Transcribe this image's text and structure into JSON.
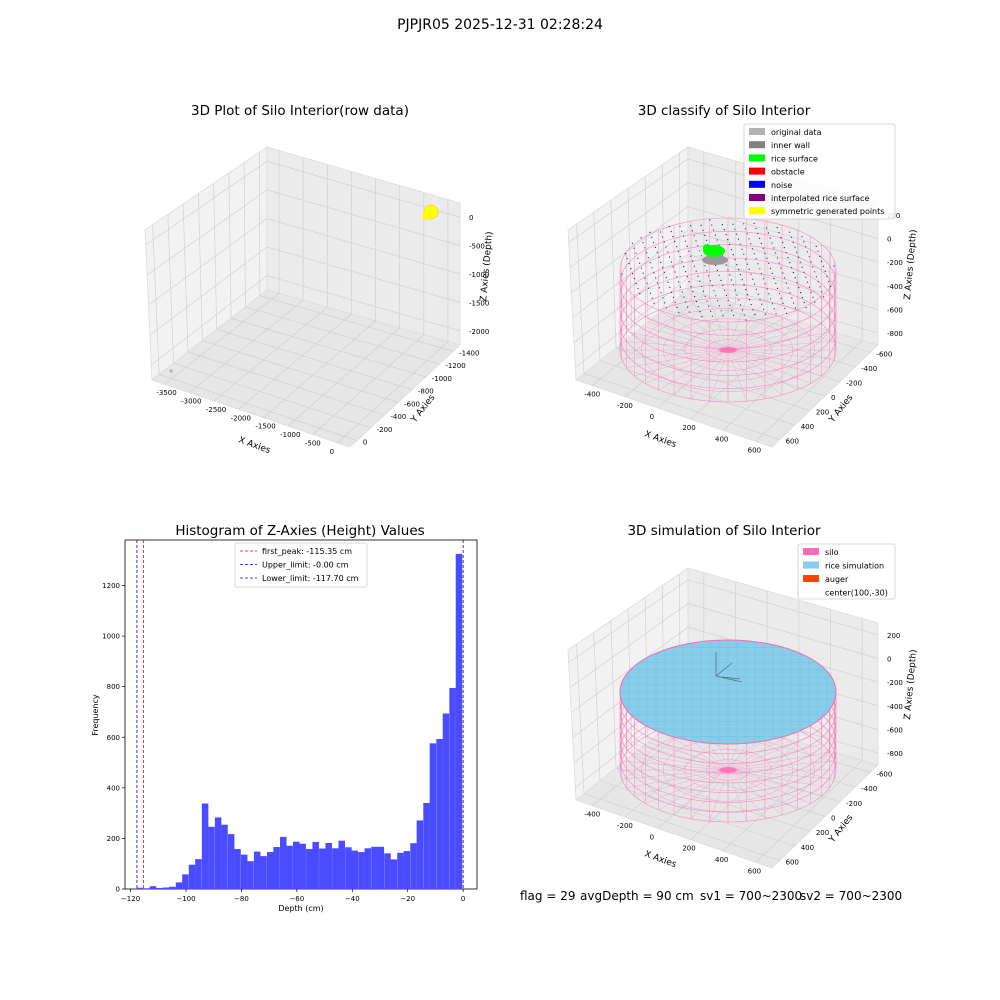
{
  "suptitle": "PJPJR05 2025-12-31 02:28:24",
  "panels": {
    "raw": {
      "title": "3D Plot of Silo Interior(row data)",
      "xlabel": "X Axies",
      "ylabel": "Y Axies",
      "zlabel": "Z Axies (Depth)",
      "xticks": [
        "-3500",
        "-3000",
        "-2500",
        "-2000",
        "-1500",
        "-1000",
        "-500",
        "0"
      ],
      "yticks": [
        "0",
        "-200",
        "-400",
        "-600",
        "-800",
        "-1000",
        "-1200",
        "-1400"
      ],
      "zticks": [
        "0",
        "-500",
        "-1000",
        "-1500",
        "-2000"
      ]
    },
    "classify": {
      "title": "3D classify of Silo Interior",
      "xlabel": "X Axies",
      "ylabel": "Y Axies",
      "zlabel": "Z Axies (Depth)",
      "xticks": [
        "-400",
        "-200",
        "0",
        "200",
        "400",
        "600"
      ],
      "yticks": [
        "600",
        "400",
        "200",
        "0",
        "-200",
        "-400",
        "-600"
      ],
      "zticks": [
        "200",
        "0",
        "-200",
        "-400",
        "-600",
        "-800"
      ],
      "legend": [
        {
          "label": "original data",
          "color": "#b3b3b3"
        },
        {
          "label": "inner wall",
          "color": "#808080"
        },
        {
          "label": "rice surface",
          "color": "#00ff00"
        },
        {
          "label": "obstacle",
          "color": "#ff0000"
        },
        {
          "label": "noise",
          "color": "#0000ff"
        },
        {
          "label": "interpolated rice surface",
          "color": "#800080"
        },
        {
          "label": "symmetric generated points",
          "color": "#ffff00"
        }
      ]
    },
    "simulation": {
      "title": "3D simulation of Silo Interior",
      "xlabel": "X Axies",
      "ylabel": "Y Axies",
      "zlabel": "Z Axies (Depth)",
      "xticks": [
        "-400",
        "-200",
        "0",
        "200",
        "400",
        "600"
      ],
      "yticks": [
        "600",
        "400",
        "200",
        "0",
        "-200",
        "-400",
        "-600"
      ],
      "zticks": [
        "200",
        "0",
        "-200",
        "-400",
        "-600",
        "-800"
      ],
      "legend": [
        {
          "label": "silo",
          "color": "#ff69b4"
        },
        {
          "label": "rice simulation",
          "color": "#87ceeb"
        },
        {
          "label": "auger",
          "color": "#ff4500"
        },
        {
          "label": "center(100,-30)",
          "color": null
        }
      ]
    }
  },
  "chart_data": {
    "type": "bar",
    "title": "Histogram of Z-Axies (Height) Values",
    "xlabel": "Depth (cm)",
    "ylabel": "Frequency",
    "xlim": [
      -122,
      5
    ],
    "ylim": [
      0,
      1380
    ],
    "xticks": [
      -120,
      -100,
      -80,
      -60,
      -40,
      -20,
      0
    ],
    "yticks": [
      0,
      200,
      400,
      600,
      800,
      1000,
      1200
    ],
    "bin_width": 2.35,
    "x": [
      -116.6,
      -114.3,
      -111.9,
      -109.6,
      -107.2,
      -104.9,
      -102.5,
      -100.2,
      -97.8,
      -95.5,
      -93.1,
      -90.8,
      -88.4,
      -86.1,
      -83.7,
      -81.4,
      -79.0,
      -76.7,
      -74.3,
      -72.0,
      -69.6,
      -67.3,
      -64.9,
      -62.6,
      -60.2,
      -57.9,
      -55.5,
      -53.2,
      -50.8,
      -48.5,
      -46.1,
      -43.8,
      -41.4,
      -39.1,
      -36.7,
      -34.4,
      -32.0,
      -29.7,
      -27.3,
      -25.0,
      -22.6,
      -20.3,
      -17.9,
      -15.6,
      -13.2,
      -10.9,
      -8.5,
      -6.2,
      -3.8,
      -1.5
    ],
    "values": [
      5,
      3,
      11,
      4,
      6,
      9,
      26,
      58,
      96,
      118,
      338,
      246,
      283,
      254,
      217,
      158,
      136,
      110,
      148,
      130,
      146,
      166,
      206,
      171,
      187,
      179,
      158,
      186,
      160,
      182,
      161,
      191,
      165,
      152,
      146,
      161,
      167,
      167,
      141,
      117,
      143,
      150,
      181,
      271,
      340,
      576,
      593,
      694,
      795,
      1325
    ],
    "vlines": [
      {
        "label": "first_peak: -115.35 cm",
        "x": -115.35,
        "color": "#ff0000"
      },
      {
        "label": "Upper_limit: -0.00 cm",
        "x": -0.0,
        "color": "#0000ff"
      },
      {
        "label": "Lower_limit: -117.70 cm",
        "x": -117.7,
        "color": "#0000ff"
      }
    ],
    "bar_color": "#4b4bff",
    "legend_position": "upper center"
  },
  "status": {
    "flag": "flag = 29",
    "avg_depth": "avgDepth = 90 cm",
    "sv1": "sv1 = 700~2300",
    "sv2": "sv2 = 700~2300"
  }
}
